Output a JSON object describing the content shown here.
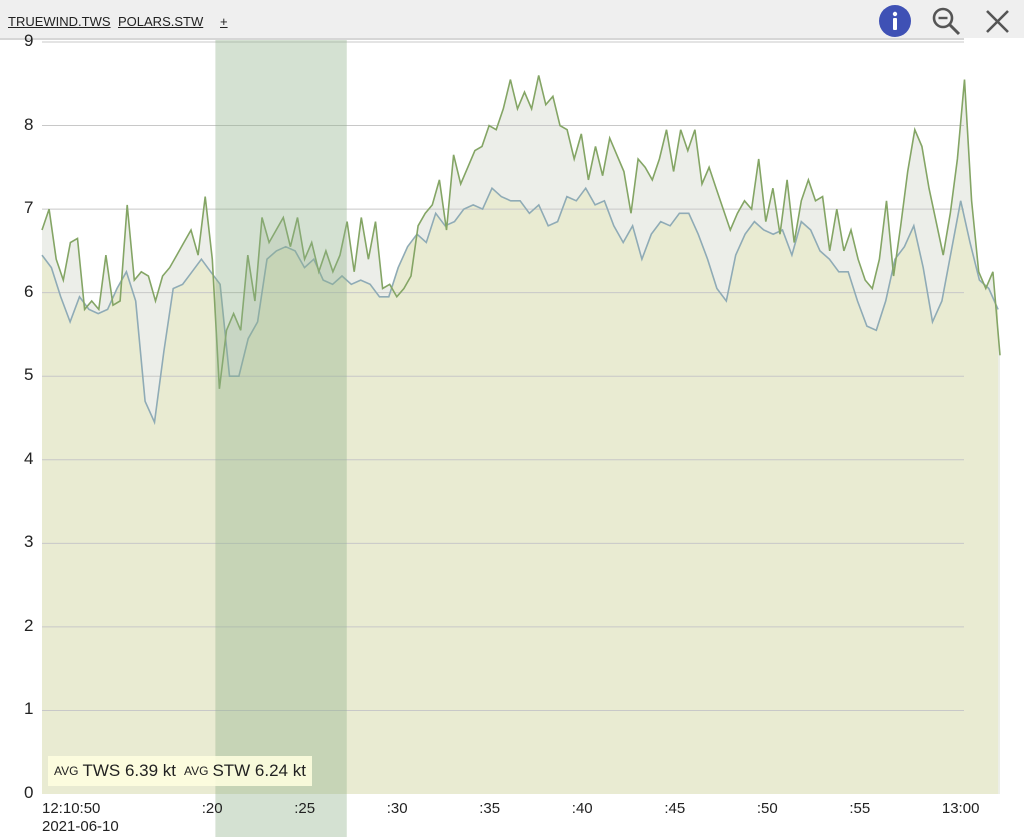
{
  "header": {
    "series_links": [
      "TRUEWIND.TWS",
      "POLARS.STW"
    ],
    "add_label": "+",
    "icons": [
      "info-icon",
      "zoom-out-icon",
      "close-icon"
    ],
    "info_color": "#3f51b5"
  },
  "summary": {
    "tws_prefix": "AVG",
    "tws_text": "TWS 6.39 kt",
    "stw_prefix": "AVG",
    "stw_text": "STW 6.24 kt"
  },
  "chart_data": {
    "type": "area",
    "title": "",
    "xlabel": "",
    "ylabel": "",
    "ylim": [
      0,
      9
    ],
    "xlim_minutes_after_12_00": [
      10.83,
      62.6
    ],
    "y_ticks": [
      "0",
      "1",
      "2",
      "3",
      "4",
      "5",
      "6",
      "7",
      "8",
      "9"
    ],
    "x_ticks": [
      {
        "t": 10.83,
        "label": "12:10:50",
        "sub": "2021-06-10"
      },
      {
        "t": 20,
        "label": ":20"
      },
      {
        "t": 25,
        "label": ":25"
      },
      {
        "t": 30,
        "label": ":30"
      },
      {
        "t": 35,
        "label": ":35"
      },
      {
        "t": 40,
        "label": ":40"
      },
      {
        "t": 45,
        "label": ":45"
      },
      {
        "t": 50,
        "label": ":50"
      },
      {
        "t": 55,
        "label": ":55"
      },
      {
        "t": 60,
        "label": "13:00"
      }
    ],
    "highlight_range_minutes": [
      20.2,
      27.3
    ],
    "colors": {
      "tws": "#84a565",
      "stw": "#8fabb6",
      "area_low": "#e9ebd2",
      "area_between": "#eceee9",
      "highlight": "#8fb088"
    },
    "series": [
      {
        "name": "TWS",
        "unit": "kt",
        "t_start": 10.83,
        "t_end": 62.6,
        "values": [
          6.75,
          7.0,
          6.4,
          6.15,
          6.6,
          6.65,
          5.8,
          5.9,
          5.8,
          6.45,
          5.85,
          5.9,
          7.05,
          6.15,
          6.25,
          6.2,
          5.9,
          6.2,
          6.3,
          6.45,
          6.6,
          6.75,
          6.45,
          7.15,
          6.4,
          4.85,
          5.55,
          5.75,
          5.55,
          6.45,
          5.9,
          6.9,
          6.6,
          6.75,
          6.9,
          6.55,
          6.9,
          6.4,
          6.6,
          6.25,
          6.5,
          6.25,
          6.45,
          6.85,
          6.25,
          6.9,
          6.4,
          6.85,
          6.05,
          6.1,
          5.95,
          6.05,
          6.2,
          6.8,
          6.95,
          7.05,
          7.35,
          6.75,
          7.65,
          7.3,
          7.5,
          7.7,
          7.75,
          8.0,
          7.95,
          8.2,
          8.55,
          8.2,
          8.4,
          8.2,
          8.6,
          8.25,
          8.35,
          8.0,
          7.95,
          7.6,
          7.9,
          7.35,
          7.75,
          7.4,
          7.85,
          7.65,
          7.45,
          6.95,
          7.6,
          7.5,
          7.35,
          7.6,
          7.95,
          7.45,
          7.95,
          7.7,
          7.95,
          7.3,
          7.5,
          7.25,
          7.0,
          6.75,
          6.95,
          7.1,
          7.0,
          7.6,
          6.85,
          7.25,
          6.7,
          7.35,
          6.6,
          7.1,
          7.35,
          7.1,
          7.15,
          6.5,
          7.0,
          6.5,
          6.75,
          6.4,
          6.15,
          6.05,
          6.4,
          7.1,
          6.2,
          6.8,
          7.45,
          7.95,
          7.75,
          7.25,
          6.85,
          6.45,
          6.95,
          7.6,
          8.55,
          7.1,
          6.25,
          6.05,
          6.25,
          5.25
        ]
      },
      {
        "name": "STW",
        "unit": "kt",
        "t_start": 10.83,
        "t_end": 62.5,
        "values": [
          6.45,
          6.3,
          5.95,
          5.65,
          5.95,
          5.8,
          5.75,
          5.8,
          6.05,
          6.25,
          5.9,
          4.7,
          4.45,
          5.3,
          6.05,
          6.1,
          6.25,
          6.4,
          6.25,
          6.1,
          5.0,
          5.0,
          5.45,
          5.65,
          6.4,
          6.5,
          6.55,
          6.5,
          6.3,
          6.4,
          6.15,
          6.1,
          6.2,
          6.1,
          6.15,
          6.1,
          5.95,
          5.95,
          6.3,
          6.55,
          6.7,
          6.6,
          6.95,
          6.8,
          6.85,
          7.0,
          7.05,
          7.0,
          7.25,
          7.15,
          7.1,
          7.1,
          6.95,
          7.05,
          6.8,
          6.85,
          7.15,
          7.1,
          7.25,
          7.05,
          7.1,
          6.8,
          6.6,
          6.8,
          6.4,
          6.7,
          6.85,
          6.8,
          6.95,
          6.95,
          6.7,
          6.4,
          6.05,
          5.9,
          6.45,
          6.7,
          6.85,
          6.75,
          6.7,
          6.75,
          6.45,
          6.85,
          6.75,
          6.5,
          6.4,
          6.25,
          6.25,
          5.9,
          5.6,
          5.55,
          5.9,
          6.4,
          6.55,
          6.8,
          6.3,
          5.65,
          5.9,
          6.5,
          7.1,
          6.6,
          6.15,
          6.05,
          5.8
        ]
      }
    ]
  }
}
